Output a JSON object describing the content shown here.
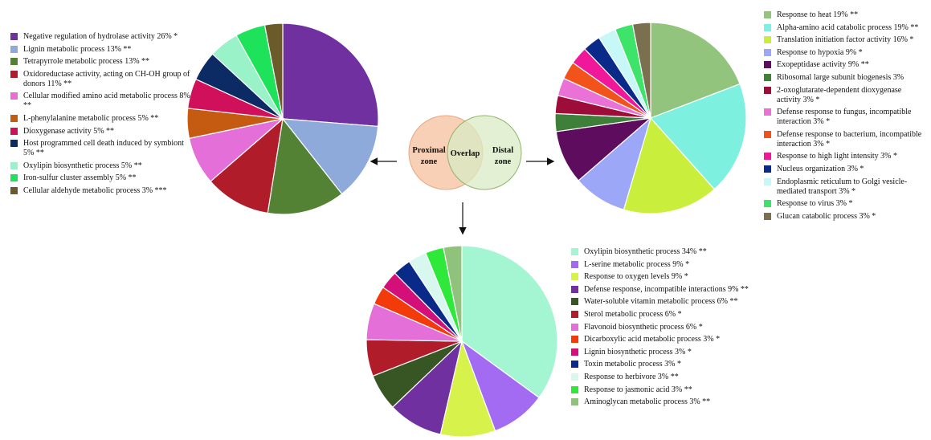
{
  "venn": {
    "left_label_line1": "Proximal",
    "left_label_line2": "zone",
    "center_label": "Overlap",
    "right_label_line1": "Distal",
    "right_label_line2": "zone",
    "colors": {
      "left": "#f7d0b5",
      "right": "#d9ebc4",
      "overlap": "#c9cfa2"
    }
  },
  "chart_data": [
    {
      "type": "pie",
      "name": "Proximal zone",
      "slices": [
        {
          "label": "Negative regulation of hydrolase activity 26% *",
          "value": 26,
          "color": "#7030a0"
        },
        {
          "label": "Lignin metabolic process 13% **",
          "value": 13,
          "color": "#8eaadb"
        },
        {
          "label": "Tetrapyrrole metabolic process 13% **",
          "value": 13,
          "color": "#548235"
        },
        {
          "label": "Oxidoreductase activity, acting on CH-OH group of donors 11% **",
          "value": 11,
          "color": "#b11c2a"
        },
        {
          "label": "Cellular modified amino acid metabolic process 8% **",
          "value": 8,
          "color": "#e46fd8"
        },
        {
          "label": "L-phenylalanine metabolic process 5% **",
          "value": 5,
          "color": "#c55a11"
        },
        {
          "label": "Dioxygenase activity 5% **",
          "value": 5,
          "color": "#d0105a"
        },
        {
          "label": "Host programmed cell death induced by symbiont 5% **",
          "value": 5,
          "color": "#0c2a63"
        },
        {
          "label": "Oxylipin biosynthetic process 5% **",
          "value": 5,
          "color": "#99f2c8"
        },
        {
          "label": "Iron-sulfur cluster assembly 5% **",
          "value": 5,
          "color": "#1ee35a"
        },
        {
          "label": "Cellular aldehyde metabolic process 3% ***",
          "value": 3,
          "color": "#6b5a2a"
        }
      ]
    },
    {
      "type": "pie",
      "name": "Distal zone",
      "slices": [
        {
          "label": "Response to heat 19% **",
          "value": 19,
          "color": "#93c47d"
        },
        {
          "label": "Alpha-amino acid catabolic process 19% **",
          "value": 19,
          "color": "#7df0df"
        },
        {
          "label": "Translation initiation factor activity 16% *",
          "value": 16,
          "color": "#c9ef3c"
        },
        {
          "label": "Response to hypoxia 9% *",
          "value": 9,
          "color": "#9da7f7"
        },
        {
          "label": "Exopeptidase activity 9% **",
          "value": 9,
          "color": "#5e0c5e"
        },
        {
          "label": "Ribosomal large subunit biogenesis 3%",
          "value": 3,
          "color": "#3e7f3a"
        },
        {
          "label": "2-oxoglutarate-dependent dioxygenase activity 3% *",
          "value": 3,
          "color": "#9e0d3a"
        },
        {
          "label": "Defense response to fungus, incompatible interaction 3% *",
          "value": 3,
          "color": "#ea72d6"
        },
        {
          "label": "Defense response to bacterium, incompatible interaction 3% *",
          "value": 3,
          "color": "#f2531a"
        },
        {
          "label": "Response to high light intensity 3% *",
          "value": 3,
          "color": "#f0179a"
        },
        {
          "label": "Nucleus organization 3% *",
          "value": 3,
          "color": "#0a2a8a"
        },
        {
          "label": "Endoplasmic reticulum to Golgi vesicle-mediated transport 3% *",
          "value": 3,
          "color": "#c7f7f7"
        },
        {
          "label": "Response to virus 3% *",
          "value": 3,
          "color": "#3ee46a"
        },
        {
          "label": "Glucan catabolic process 3% *",
          "value": 3,
          "color": "#7a6f4e"
        }
      ]
    },
    {
      "type": "pie",
      "name": "Overlap",
      "slices": [
        {
          "label": "Oxylipin biosynthetic process 34% **",
          "value": 34,
          "color": "#a4f5d2"
        },
        {
          "label": "L-serine metabolic process 9% *",
          "value": 9,
          "color": "#a36af2"
        },
        {
          "label": "Response to oxygen levels 9% *",
          "value": 9,
          "color": "#d7f24a"
        },
        {
          "label": "Defense response, incompatible interactions 9% **",
          "value": 9,
          "color": "#7030a0"
        },
        {
          "label": "Water-soluble vitamin metabolic process 6% **",
          "value": 6,
          "color": "#375623"
        },
        {
          "label": "Sterol metabolic process 6% *",
          "value": 6,
          "color": "#b11c2a"
        },
        {
          "label": "Flavonoid biosynthetic process 6% *",
          "value": 6,
          "color": "#e46fd8"
        },
        {
          "label": "Dicarboxylic acid metabolic process 3% *",
          "value": 3,
          "color": "#f23a0a"
        },
        {
          "label": "Lignin biosynthetic process 3% *",
          "value": 3,
          "color": "#d40f7a"
        },
        {
          "label": "Toxin metabolic process 3% *",
          "value": 3,
          "color": "#0a2a8a"
        },
        {
          "label": "Response to herbivore 3% **",
          "value": 3,
          "color": "#d8f7ee"
        },
        {
          "label": "Response to jasmonic acid 3% **",
          "value": 3,
          "color": "#2ee83a"
        },
        {
          "label": "Aminoglycan metabolic process 3% **",
          "value": 3,
          "color": "#8fc27a"
        }
      ]
    }
  ]
}
